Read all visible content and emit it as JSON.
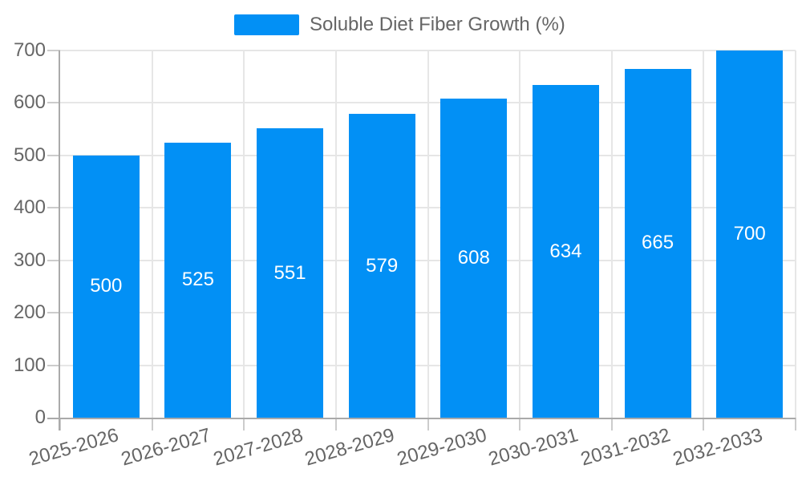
{
  "chart_data": {
    "type": "bar",
    "title": "Soluble Diet Fiber Growth (%)",
    "legend_entries": [
      "Soluble Diet Fiber Growth (%)"
    ],
    "legend_position": "top-center",
    "categories": [
      "2025-2026",
      "2026-2027",
      "2027-2028",
      "2028-2029",
      "2029-2030",
      "2030-2031",
      "2031-2032",
      "2032-2033"
    ],
    "values": [
      500,
      525,
      551,
      579,
      608,
      634,
      665,
      700
    ],
    "xlabel": "",
    "ylabel": "",
    "ylim": [
      0,
      700
    ],
    "ytick_step": 100,
    "ytick_labels": [
      "0",
      "100",
      "200",
      "300",
      "400",
      "500",
      "600",
      "700"
    ],
    "grid": true,
    "value_label_position": "center-of-bar",
    "x_label_rotation_deg": -16,
    "colors": {
      "bar": "#0290f5",
      "axis_line": "#aaaaaa",
      "gridline": "#e6e6e6",
      "tick": "#cccccc",
      "axis_text": "#666666",
      "legend_text": "#666666",
      "value_text": "#ffffff",
      "background": "#ffffff"
    }
  }
}
